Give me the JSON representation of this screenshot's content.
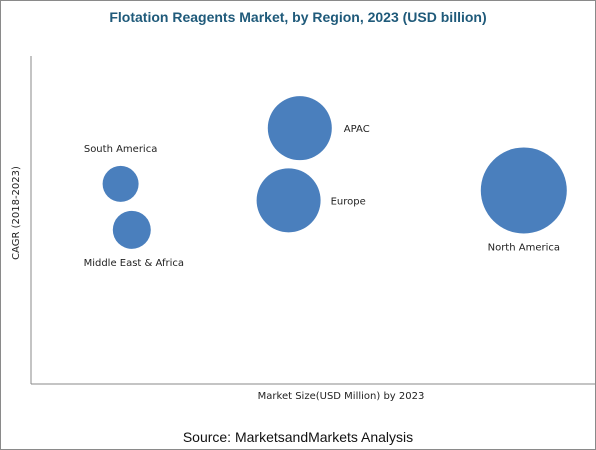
{
  "chart_data": {
    "type": "bubble",
    "title": "Flotation Reagents Market, by Region, 2023 (USD billion)",
    "xlabel": "Market Size(USD Million) by 2023",
    "ylabel": "CAGR (2018-2023)",
    "grid": false,
    "legend": "none",
    "bubble_color": "#4a7fbd",
    "points": [
      {
        "name": "APAC",
        "x": 48,
        "y": 78,
        "size": 32
      },
      {
        "name": "Europe",
        "x": 46,
        "y": 56,
        "size": 32
      },
      {
        "name": "North America",
        "x": 88,
        "y": 59,
        "size": 43
      },
      {
        "name": "South America",
        "x": 16,
        "y": 61,
        "size": 18
      },
      {
        "name": "Middle East & Africa",
        "x": 18,
        "y": 47,
        "size": 19
      }
    ]
  },
  "source": "Source: MarketsandMarkets Analysis"
}
